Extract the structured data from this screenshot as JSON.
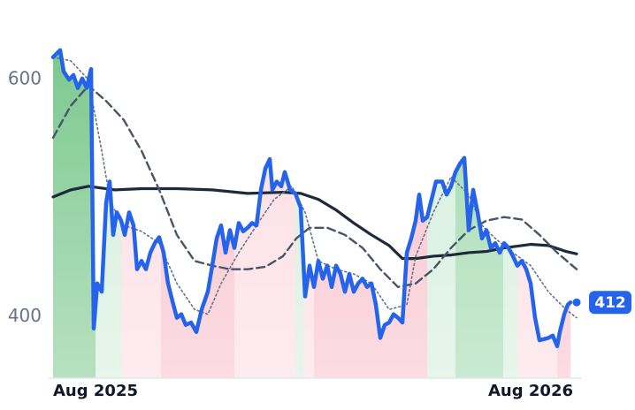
{
  "chart_data": {
    "type": "line",
    "xlim": [
      0,
      118.4
    ],
    "ylim": [
      348,
      630
    ],
    "xticks": [
      {
        "value": 0,
        "label": "Aug 2025"
      },
      {
        "value": 108,
        "label": "Aug 2026"
      }
    ],
    "yticks": [
      400,
      600
    ],
    "grid": false,
    "series": [
      {
        "color": "#2563eb",
        "style": "solid",
        "x": [
          0,
          1.6,
          2.4,
          3.6,
          4.6,
          5.6,
          6.6,
          7.6,
          8.6,
          9.2,
          10,
          11,
          12,
          12.8,
          13.6,
          14.4,
          15.4,
          16.2,
          17.2,
          18.2,
          19,
          20,
          21,
          22,
          23,
          24,
          25,
          26,
          27,
          28,
          29,
          30,
          31.2,
          32.4,
          33.6,
          35,
          36,
          37,
          38,
          39,
          40,
          41,
          42,
          43,
          44,
          45,
          46,
          47,
          48,
          49,
          49.6,
          50.6,
          51.6,
          52.4,
          53.6,
          54.8,
          56,
          57,
          58,
          59,
          60,
          61,
          62,
          63,
          64,
          65,
          66,
          67,
          68,
          69,
          70,
          71,
          72,
          73,
          74,
          75,
          76,
          77,
          78,
          79,
          80,
          81,
          82,
          82.8,
          83.6,
          84.6,
          85.6,
          86.6,
          88,
          89,
          90,
          91,
          92,
          93,
          94,
          95,
          96,
          97,
          98,
          99,
          100,
          101,
          102,
          103,
          104,
          105,
          106,
          107,
          108,
          109,
          110,
          111,
          112,
          113,
          114,
          114.6,
          115.6,
          116.4,
          117
        ],
        "values": [
          619,
          625,
          607,
          600,
          604,
          593,
          601,
          593,
          609,
          390,
          428,
          421,
          496,
          514,
          469,
          488,
          481,
          469,
          488,
          477,
          440,
          447,
          440,
          454,
          462,
          467,
          454,
          428,
          413,
          399,
          402,
          393,
          395,
          387,
          406,
          421,
          443,
          466,
          477,
          454,
          473,
          458,
          479,
          472,
          475,
          479,
          477,
          507,
          525,
          533,
          507,
          514,
          510,
          522,
          507,
          504,
          492,
          417,
          443,
          425,
          447,
          432,
          443,
          425,
          443,
          436,
          421,
          436,
          421,
          428,
          432,
          425,
          428,
          410,
          382,
          393,
          395,
          402,
          399,
          395,
          454,
          466,
          481,
          503,
          481,
          484,
          499,
          514,
          514,
          503,
          510,
          522,
          529,
          534,
          473,
          507,
          488,
          466,
          473,
          458,
          462,
          454,
          462,
          458,
          451,
          443,
          447,
          440,
          428,
          399,
          380,
          381,
          382,
          384,
          375,
          387,
          402,
          410,
          412
        ]
      },
      {
        "color": "#64748b",
        "style": "dotted",
        "x": [
          0,
          4,
          8,
          11,
          13,
          16,
          20,
          24,
          28,
          32,
          35,
          38,
          42,
          46,
          50,
          54,
          57,
          60,
          64,
          68,
          72,
          76,
          80,
          82,
          86,
          90,
          94,
          97,
          100,
          104,
          108,
          112,
          116,
          118.4
        ],
        "values": [
          619,
          616,
          600,
          540,
          496,
          477,
          472,
          462,
          428,
          406,
          402,
          428,
          454,
          477,
          499,
          510,
          488,
          447,
          440,
          436,
          428,
          406,
          410,
          451,
          488,
          518,
          503,
          477,
          466,
          454,
          443,
          421,
          406,
          399
        ]
      },
      {
        "color": "#475569",
        "style": "dashed",
        "x": [
          0,
          4,
          8,
          12,
          16,
          20,
          24,
          28,
          32,
          36,
          40,
          44,
          48,
          52,
          55,
          58,
          62,
          66,
          70,
          74,
          78,
          82,
          86,
          90,
          94,
          98,
          102,
          106,
          110,
          114,
          118.4
        ],
        "values": [
          551,
          578,
          595,
          582,
          566,
          540,
          507,
          469,
          447,
          443,
          440,
          440,
          442,
          451,
          466,
          475,
          475,
          469,
          458,
          440,
          425,
          428,
          440,
          458,
          473,
          481,
          484,
          482,
          469,
          454,
          440
        ]
      },
      {
        "color": "#1e293b",
        "style": "solid-thin",
        "x": [
          0,
          4,
          8,
          14,
          20,
          28,
          36,
          44,
          52,
          56,
          60,
          64,
          68,
          72,
          76,
          79,
          82,
          86,
          90,
          94,
          98,
          102,
          108,
          112,
          116,
          118.4
        ],
        "values": [
          501,
          507,
          510,
          507,
          508,
          508,
          507,
          504,
          505,
          504,
          499,
          490,
          479,
          469,
          460,
          449,
          449,
          451,
          452,
          454,
          455,
          458,
          461,
          460,
          455,
          453
        ]
      }
    ],
    "bands": [
      {
        "start": 0,
        "end": 9.6,
        "color": "#7cc88e"
      },
      {
        "start": 9.6,
        "end": 15.4,
        "color": "#d3eedb"
      },
      {
        "start": 15.4,
        "end": 24.4,
        "color": "#fcdce2"
      },
      {
        "start": 24.4,
        "end": 41,
        "color": "#f9bfcb"
      },
      {
        "start": 41,
        "end": 54.8,
        "color": "#fcdce2"
      },
      {
        "start": 54.8,
        "end": 56.6,
        "color": "#d3eedb"
      },
      {
        "start": 56.6,
        "end": 59,
        "color": "#fcdce2"
      },
      {
        "start": 59,
        "end": 84.6,
        "color": "#f9bfcb"
      },
      {
        "start": 84.6,
        "end": 91,
        "color": "#d3eedb"
      },
      {
        "start": 91,
        "end": 101.8,
        "color": "#9ed9ac"
      },
      {
        "start": 101.8,
        "end": 105,
        "color": "#d3eedb"
      },
      {
        "start": 105,
        "end": 114,
        "color": "#fcdce2"
      },
      {
        "start": 114,
        "end": 118.4,
        "color": "#f9bfcb"
      }
    ]
  }
}
